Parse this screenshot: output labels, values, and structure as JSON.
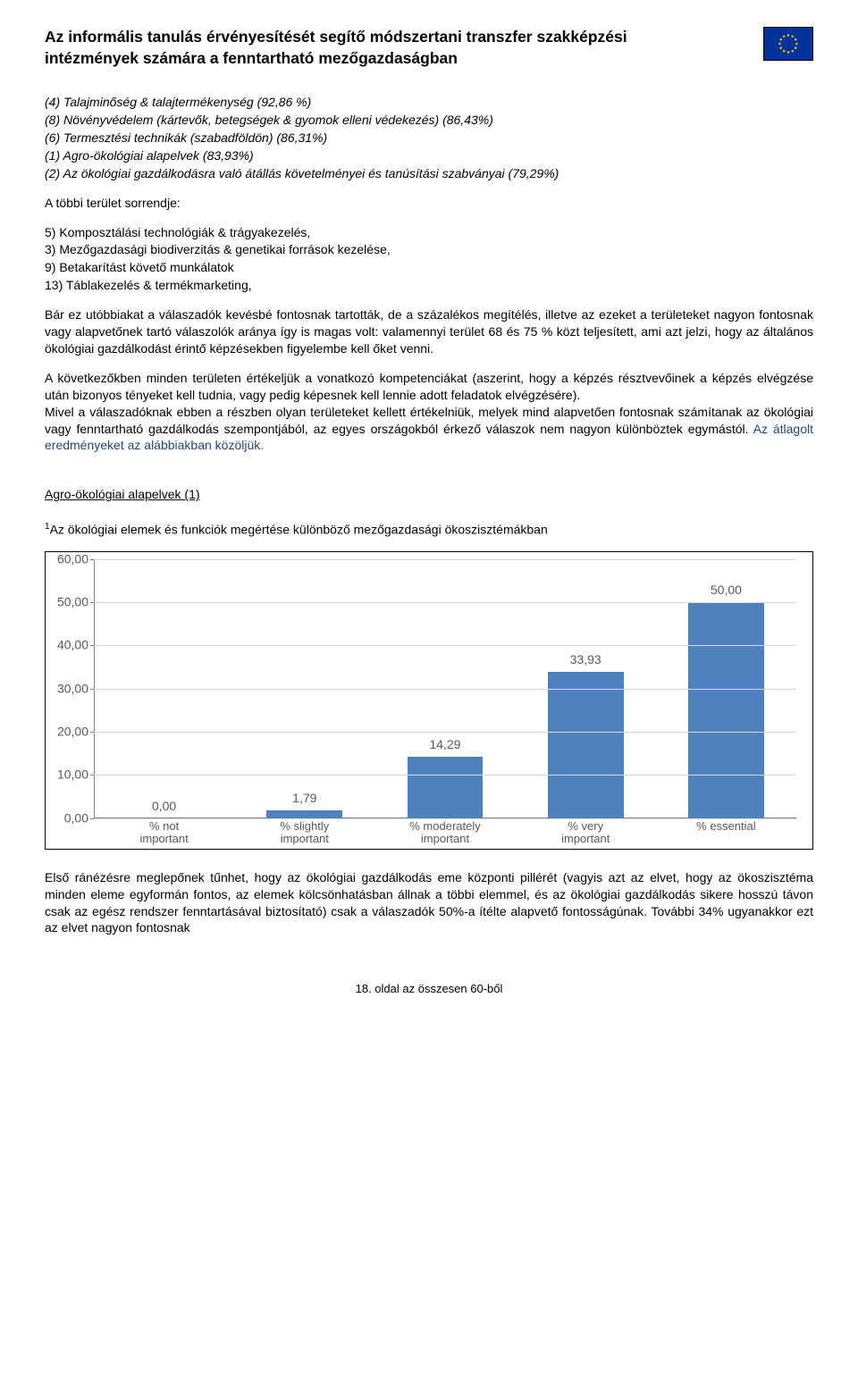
{
  "header": {
    "title": "Az informális tanulás érvényesítését segítő módszertani transzfer szakképzési intézmények számára a fenntartható mezőgazdaságban"
  },
  "italic_list": {
    "items": [
      "(4) Talajminőség & talajtermékenység (92,86 %)",
      "(8) Növényvédelem (kártevők, betegségek & gyomok elleni védekezés) (86,43%)",
      "(6) Termesztési technikák (szabadföldön) (86,31%)",
      "(1) Agro-ökológiai alapelvek (83,93%)",
      "(2) Az ökológiai gazdálkodásra való átállás követelményei és tanúsítási szabványai (79,29%)"
    ]
  },
  "sorrend_label": "A többi terület sorrendje:",
  "list5": {
    "items": [
      "5) Komposztálási technológiák & trágyakezelés,",
      "3) Mezőgazdasági biodiverzitás & genetikai források kezelése,",
      "9) Betakarítást követő munkálatok",
      "13) Táblakezelés & termékmarketing,"
    ]
  },
  "para1": "Bár ez utóbbiakat a válaszadók kevésbé fontosnak tartották, de a százalékos megítélés, illetve az ezeket a területeket nagyon fontosnak vagy alapvetőnek tartó válaszolók aránya így is magas volt: valamennyi terület 68 és 75 % közt teljesített, ami azt jelzi, hogy az általános ökológiai gazdálkodást érintő képzésekben figyelembe kell őket venni.",
  "para2": "A következőkben minden területen értékeljük a vonatkozó kompetenciákat (aszerint, hogy a képzés résztvevőinek a képzés elvégzése után bizonyos tényeket kell tudnia, vagy pedig képesnek kell lennie adott feladatok elvégzésére).",
  "para3a": "Mivel a válaszadóknak ebben a részben olyan területeket kellett értékelniük, melyek mind alapvetően fontosnak számítanak az ökológiai vagy fenntartható gazdálkodás szempontjából, az egyes országokból érkező válaszok nem nagyon különböztek egymástól. ",
  "para3b": "Az átlagolt eredményeket az alábbiakban közöljük.",
  "section_title": "Agro-ökológiai alapelvek (1)",
  "chart_heading_sup": "1",
  "chart_heading": "Az ökológiai elemek és funkciók megértése különböző mezőgazdasági ökoszisztémákban",
  "chart": {
    "type": "bar",
    "ylim": [
      0,
      60
    ],
    "ytick_step": 10,
    "yticks": [
      "0,00",
      "10,00",
      "20,00",
      "30,00",
      "40,00",
      "50,00",
      "60,00"
    ],
    "categories": [
      "% not\nimportant",
      "% slightly\nimportant",
      "% moderately\nimportant",
      "% very\nimportant",
      "% essential"
    ],
    "values": [
      0,
      1.79,
      14.29,
      33.93,
      50.0
    ],
    "value_labels": [
      "0,00",
      "1,79",
      "14,29",
      "33,93",
      "50,00"
    ],
    "bar_color": "#4f81bd",
    "grid_color": "#d9d9d9",
    "axis_color": "#808080",
    "text_color": "#595959",
    "background_color": "#ffffff",
    "bar_width": 0.54
  },
  "para4": "Első ránézésre meglepőnek tűnhet, hogy az ökológiai gazdálkodás eme központi pillérét (vagyis azt az elvet, hogy az ökoszisztéma minden eleme egyformán fontos, az elemek kölcsönhatásban állnak a többi elemmel, és az ökológiai gazdálkodás sikere hosszú távon csak az egész rendszer fenntartásával biztosítató) csak a válaszadók 50%-a ítélte alapvető fontosságúnak. További 34% ugyanakkor ezt az elvet nagyon fontosnak",
  "footer": "18. oldal az összesen 60-ből"
}
